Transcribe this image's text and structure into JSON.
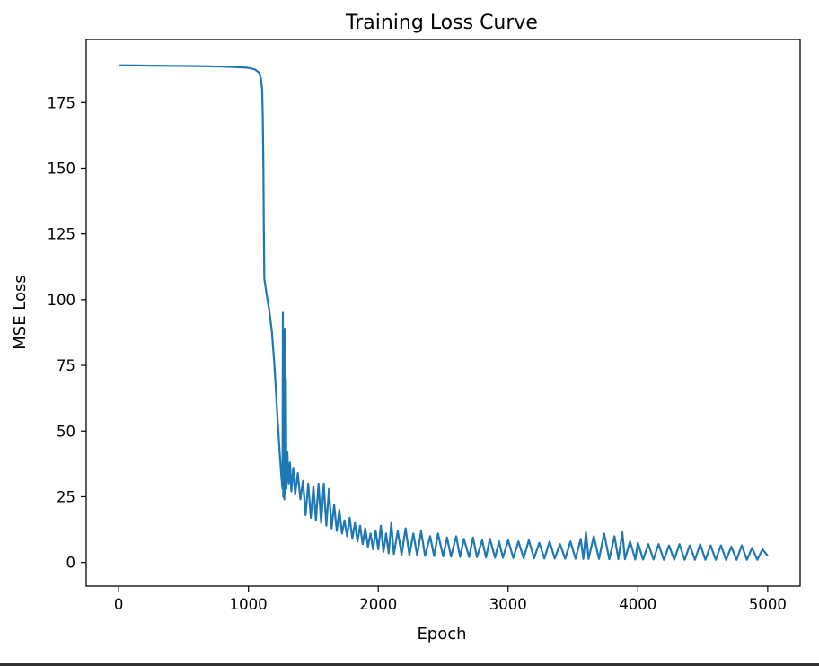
{
  "chart_data": {
    "type": "line",
    "title": "Training Loss Curve",
    "xlabel": "Epoch",
    "ylabel": "MSE Loss",
    "xlim": [
      -250,
      5250
    ],
    "ylim": [
      -9,
      199
    ],
    "xticks": [
      0,
      1000,
      2000,
      3000,
      4000,
      5000
    ],
    "xtick_labels": [
      "0",
      "1000",
      "2000",
      "3000",
      "4000",
      "5000"
    ],
    "yticks": [
      0,
      25,
      50,
      75,
      100,
      125,
      150,
      175
    ],
    "ytick_labels": [
      "0",
      "25",
      "50",
      "75",
      "100",
      "125",
      "150",
      "175"
    ],
    "grid": false,
    "legend": "none",
    "series_color": "#1f77b4",
    "series": [
      {
        "points": [
          [
            0,
            189.2
          ],
          [
            200,
            189.1
          ],
          [
            400,
            189.0
          ],
          [
            600,
            188.9
          ],
          [
            800,
            188.7
          ],
          [
            950,
            188.4
          ],
          [
            1000,
            188.2
          ],
          [
            1050,
            187.6
          ],
          [
            1080,
            186.5
          ],
          [
            1095,
            184.5
          ],
          [
            1105,
            180
          ],
          [
            1110,
            170
          ],
          [
            1115,
            150
          ],
          [
            1118,
            130
          ],
          [
            1122,
            108
          ],
          [
            1140,
            102
          ],
          [
            1160,
            96
          ],
          [
            1180,
            88
          ],
          [
            1200,
            75
          ],
          [
            1220,
            58
          ],
          [
            1240,
            42
          ],
          [
            1255,
            32
          ],
          [
            1262,
            28
          ],
          [
            1265,
            95
          ],
          [
            1268,
            25
          ],
          [
            1272,
            80
          ],
          [
            1276,
            24
          ],
          [
            1280,
            89
          ],
          [
            1284,
            26
          ],
          [
            1288,
            70
          ],
          [
            1292,
            28
          ],
          [
            1300,
            42
          ],
          [
            1310,
            30
          ],
          [
            1320,
            38
          ],
          [
            1330,
            27
          ],
          [
            1345,
            36
          ],
          [
            1360,
            26
          ],
          [
            1380,
            34
          ],
          [
            1400,
            24
          ],
          [
            1420,
            31
          ],
          [
            1440,
            18
          ],
          [
            1460,
            30
          ],
          [
            1480,
            17
          ],
          [
            1500,
            29
          ],
          [
            1520,
            16
          ],
          [
            1540,
            30
          ],
          [
            1560,
            15
          ],
          [
            1580,
            30
          ],
          [
            1600,
            14
          ],
          [
            1620,
            28
          ],
          [
            1640,
            13
          ],
          [
            1660,
            22
          ],
          [
            1680,
            12
          ],
          [
            1700,
            20
          ],
          [
            1720,
            11
          ],
          [
            1740,
            16
          ],
          [
            1760,
            10
          ],
          [
            1780,
            17
          ],
          [
            1800,
            9
          ],
          [
            1820,
            15
          ],
          [
            1840,
            8
          ],
          [
            1860,
            14
          ],
          [
            1880,
            7
          ],
          [
            1900,
            13
          ],
          [
            1920,
            6
          ],
          [
            1940,
            11
          ],
          [
            1960,
            5
          ],
          [
            1980,
            12
          ],
          [
            2000,
            5
          ],
          [
            2020,
            14
          ],
          [
            2040,
            4
          ],
          [
            2060,
            11
          ],
          [
            2080,
            3.5
          ],
          [
            2100,
            15
          ],
          [
            2120,
            3.2
          ],
          [
            2150,
            12
          ],
          [
            2180,
            3
          ],
          [
            2210,
            13
          ],
          [
            2240,
            2.8
          ],
          [
            2270,
            11
          ],
          [
            2300,
            2.6
          ],
          [
            2330,
            12
          ],
          [
            2360,
            2.5
          ],
          [
            2400,
            10
          ],
          [
            2430,
            2.4
          ],
          [
            2460,
            11
          ],
          [
            2500,
            2.3
          ],
          [
            2530,
            9.5
          ],
          [
            2560,
            2.2
          ],
          [
            2600,
            10
          ],
          [
            2630,
            2.1
          ],
          [
            2660,
            9
          ],
          [
            2700,
            2
          ],
          [
            2730,
            9.5
          ],
          [
            2760,
            2
          ],
          [
            2800,
            8.5
          ],
          [
            2830,
            1.9
          ],
          [
            2860,
            9
          ],
          [
            2900,
            1.8
          ],
          [
            2930,
            8
          ],
          [
            2960,
            1.8
          ],
          [
            3000,
            8.5
          ],
          [
            3040,
            1.7
          ],
          [
            3080,
            8
          ],
          [
            3120,
            1.6
          ],
          [
            3160,
            8.5
          ],
          [
            3200,
            1.6
          ],
          [
            3240,
            7.5
          ],
          [
            3280,
            1.5
          ],
          [
            3320,
            8
          ],
          [
            3360,
            1.5
          ],
          [
            3400,
            7
          ],
          [
            3440,
            1.4
          ],
          [
            3480,
            8
          ],
          [
            3520,
            1.4
          ],
          [
            3560,
            9
          ],
          [
            3580,
            1.3
          ],
          [
            3600,
            11.5
          ],
          [
            3620,
            1.3
          ],
          [
            3660,
            10
          ],
          [
            3700,
            1.3
          ],
          [
            3740,
            11
          ],
          [
            3780,
            1.2
          ],
          [
            3820,
            10
          ],
          [
            3850,
            1.2
          ],
          [
            3880,
            11.5
          ],
          [
            3900,
            1.2
          ],
          [
            3940,
            8
          ],
          [
            3980,
            1.1
          ],
          [
            4000,
            7.5
          ],
          [
            4040,
            1.1
          ],
          [
            4080,
            7
          ],
          [
            4120,
            1.1
          ],
          [
            4160,
            7
          ],
          [
            4200,
            1
          ],
          [
            4240,
            6.5
          ],
          [
            4280,
            1
          ],
          [
            4320,
            7
          ],
          [
            4360,
            1
          ],
          [
            4400,
            6.5
          ],
          [
            4440,
            1
          ],
          [
            4480,
            7
          ],
          [
            4520,
            1
          ],
          [
            4560,
            6.5
          ],
          [
            4600,
            1
          ],
          [
            4640,
            6.5
          ],
          [
            4680,
            1
          ],
          [
            4720,
            6
          ],
          [
            4760,
            1
          ],
          [
            4800,
            6.5
          ],
          [
            4840,
            1
          ],
          [
            4880,
            5.5
          ],
          [
            4920,
            1
          ],
          [
            4960,
            5
          ],
          [
            5000,
            2.5
          ]
        ]
      }
    ]
  }
}
